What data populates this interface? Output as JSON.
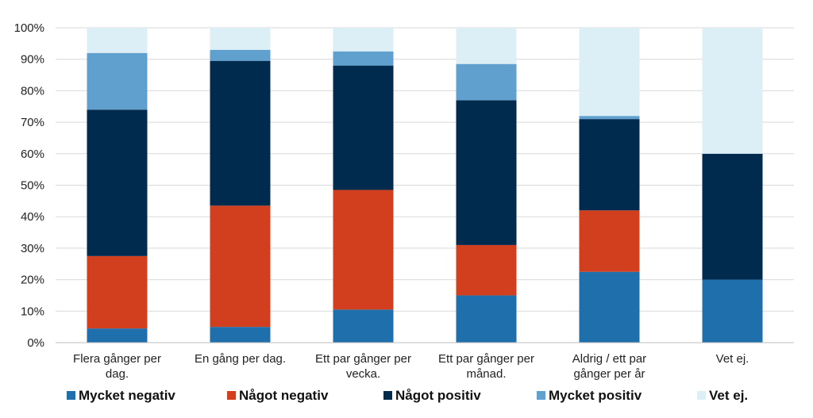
{
  "chart_data": {
    "type": "bar",
    "stacked": true,
    "categories": [
      [
        "Flera gånger per",
        "dag."
      ],
      [
        "En gång per dag."
      ],
      [
        "Ett par gånger per",
        "vecka."
      ],
      [
        "Ett par gånger per",
        "månad."
      ],
      [
        "Aldrig / ett par",
        "gånger per år"
      ],
      [
        "Vet ej."
      ]
    ],
    "series": [
      {
        "name": "Mycket negativ",
        "color": "#1f6fad",
        "values": [
          4.5,
          5,
          10.5,
          15,
          22.5,
          20
        ]
      },
      {
        "name": "Något negativ",
        "color": "#d13f1e",
        "values": [
          23,
          38.5,
          38,
          16,
          19.5,
          0
        ]
      },
      {
        "name": "Något positiv",
        "color": "#012a4f",
        "values": [
          46.5,
          46,
          39.5,
          46,
          29,
          40
        ]
      },
      {
        "name": "Mycket positiv",
        "color": "#5fa0cf",
        "values": [
          18,
          3.5,
          4.5,
          11.5,
          1,
          0
        ]
      },
      {
        "name": "Vet ej.",
        "color": "#dceef6",
        "values": [
          8,
          7,
          7.5,
          11.5,
          28,
          40
        ]
      }
    ],
    "yticks": [
      "0%",
      "10%",
      "20%",
      "30%",
      "40%",
      "50%",
      "60%",
      "70%",
      "80%",
      "90%",
      "100%"
    ],
    "ylim": [
      0,
      100
    ],
    "title": "",
    "xlabel": "",
    "ylabel": "",
    "grid": true,
    "legend_position": "bottom"
  }
}
